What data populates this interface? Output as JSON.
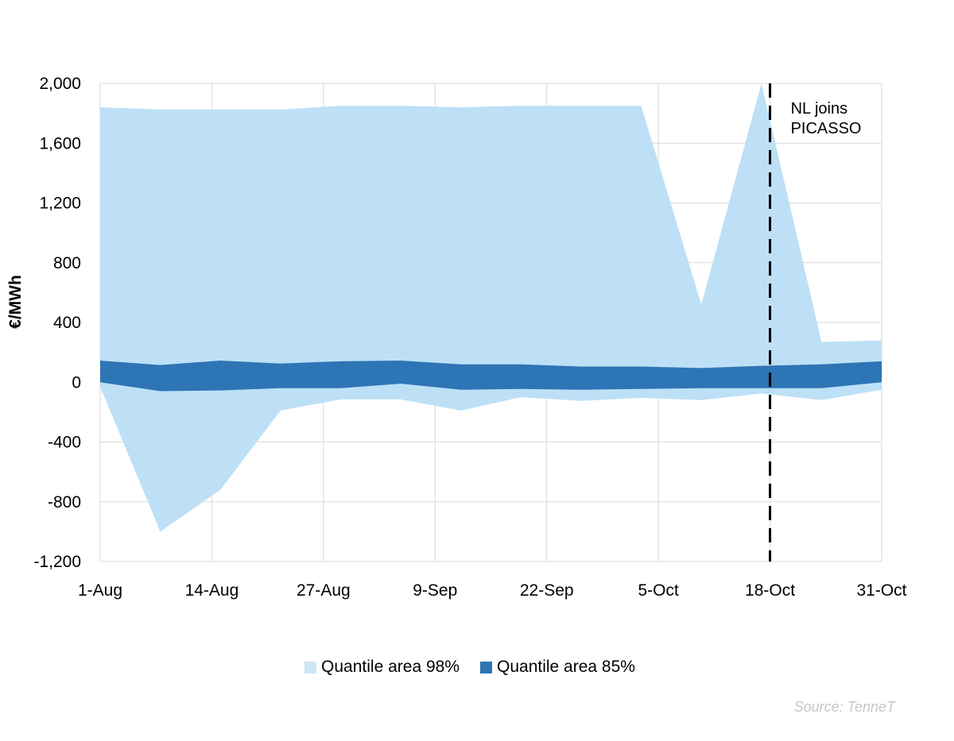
{
  "chart_data": {
    "type": "area",
    "ylabel": "€/MWh",
    "xlabel": "",
    "ylim": [
      -1200,
      2000
    ],
    "y_ticks": [
      2000,
      1600,
      1200,
      800,
      400,
      0,
      -400,
      -800,
      -1200
    ],
    "y_tick_labels": [
      "2,000",
      "1,600",
      "1,200",
      "800",
      "400",
      "0",
      "-400",
      "-800",
      "-1,200"
    ],
    "x_tick_labels": [
      "1-Aug",
      "14-Aug",
      "27-Aug",
      "9-Sep",
      "22-Sep",
      "5-Oct",
      "18-Oct",
      "31-Oct"
    ],
    "grid": true,
    "legend_position": "bottom",
    "x": [
      "1-Aug",
      "8-Aug",
      "15-Aug",
      "22-Aug",
      "29-Aug",
      "5-Sep",
      "12-Sep",
      "19-Sep",
      "26-Sep",
      "3-Oct",
      "10-Oct",
      "17-Oct",
      "24-Oct",
      "31-Oct"
    ],
    "series": [
      {
        "name": "Quantile area 98%",
        "color": "#bde0f6",
        "upper": [
          1840,
          1825,
          1825,
          1825,
          1850,
          1850,
          1840,
          1850,
          1850,
          1850,
          520,
          2000,
          270,
          280
        ],
        "lower": [
          -30,
          -1000,
          -720,
          -190,
          -115,
          -115,
          -190,
          -100,
          -125,
          -105,
          -120,
          -75,
          -120,
          -50
        ]
      },
      {
        "name": "Quantile area 85%",
        "color": "#2e75b6",
        "upper": [
          145,
          115,
          145,
          125,
          140,
          145,
          120,
          120,
          105,
          105,
          95,
          110,
          120,
          140
        ],
        "lower": [
          0,
          -60,
          -55,
          -40,
          -40,
          -10,
          -50,
          -45,
          -50,
          -45,
          -40,
          -40,
          -40,
          0
        ]
      }
    ],
    "annotations": [
      {
        "text_line1": "NL joins",
        "text_line2": "PICASSO",
        "x": "18-Oct",
        "style": "dashed vertical line"
      }
    ]
  },
  "legend": {
    "items": [
      {
        "label": "Quantile area 98%",
        "color": "#cde6f6"
      },
      {
        "label": "Quantile area 85%",
        "color": "#2e75b6"
      }
    ]
  },
  "source": "Source: TenneT"
}
